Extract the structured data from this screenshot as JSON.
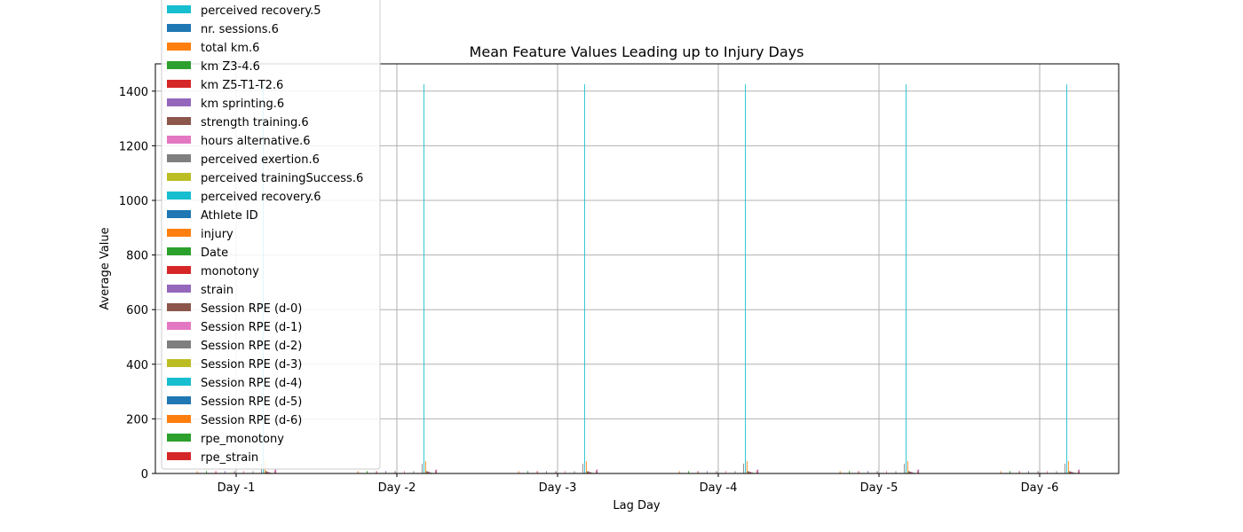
{
  "chart_data": {
    "type": "bar",
    "title": "Mean Feature Values Leading up to Injury Days",
    "xlabel": "Lag Day",
    "ylabel": "Average Value",
    "categories": [
      "Day -1",
      "Day -2",
      "Day -3",
      "Day -4",
      "Day -5",
      "Day -6"
    ],
    "ylim": [
      0,
      1500
    ],
    "yticks": [
      0,
      200,
      400,
      600,
      800,
      1000,
      1200,
      1400
    ],
    "grid": true,
    "legend_position": "upper-left",
    "legend_visible": [
      "perceived recovery.5",
      "nr. sessions.6",
      "total km.6",
      "km Z3-4.6",
      "km Z5-T1-T2.6",
      "km sprinting.6",
      "strength training.6",
      "hours alternative.6",
      "perceived exertion.6",
      "perceived trainingSuccess.6",
      "perceived recovery.6",
      "Athlete ID",
      "injury",
      "Date",
      "monotony",
      "strain",
      "Session RPE (d-0)",
      "Session RPE (d-1)",
      "Session RPE (d-2)",
      "Session RPE (d-3)",
      "Session RPE (d-4)",
      "Session RPE (d-5)",
      "Session RPE (d-6)",
      "rpe_monotony",
      "rpe_strain"
    ],
    "palette": [
      "#1f77b4",
      "#ff7f0e",
      "#2ca02c",
      "#d62728",
      "#9467bd",
      "#8c564b",
      "#e377c2",
      "#7f7f7f",
      "#bcbd22",
      "#17becf"
    ],
    "series_count": 95,
    "series_values": [
      0.8,
      9.0,
      0.7,
      0.5,
      0.4,
      0.3,
      0.2,
      0.5,
      0.4,
      0.4,
      0.4,
      0.8,
      9.0,
      0.7,
      0.5,
      0.4,
      0.3,
      0.2,
      0.5,
      0.4,
      0.4,
      0.4,
      0.8,
      9.0,
      0.7,
      0.5,
      0.4,
      0.3,
      0.2,
      0.5,
      0.4,
      0.4,
      0.4,
      0.8,
      9.0,
      0.7,
      0.5,
      0.4,
      0.3,
      0.2,
      0.5,
      0.4,
      0.4,
      0.4,
      0.8,
      9.0,
      0.7,
      0.5,
      0.4,
      0.3,
      0.2,
      0.5,
      0.4,
      0.4,
      0.4,
      0.8,
      9.0,
      0.7,
      0.5,
      0.4,
      0.3,
      0.2,
      0.5,
      0.4,
      0.4,
      0.4,
      0.8,
      9.0,
      0.7,
      0.5,
      0.4,
      0.3,
      0.2,
      0.5,
      0.4,
      0.4,
      0.4,
      36,
      0.2,
      1425,
      1.5,
      45,
      9,
      8,
      7,
      6,
      5,
      4,
      3,
      2,
      1,
      0.5,
      1.5,
      12,
      15
    ]
  }
}
